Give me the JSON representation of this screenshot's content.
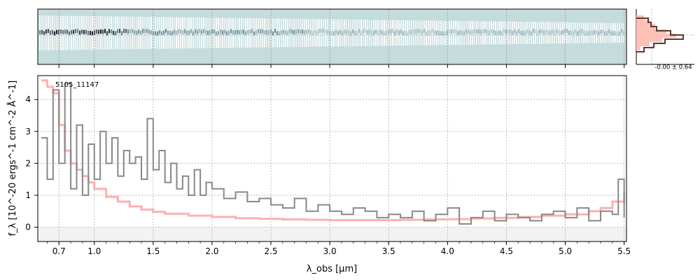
{
  "chart_data": {
    "type": "line",
    "object_label": "5105_11147",
    "xlabel": "λ_obs [µm]",
    "ylabel": "f_λ [10^-20 ergs^-1 cm^-2 Å^-1]",
    "xlim": [
      0.52,
      5.52
    ],
    "ylim": [
      -0.45,
      4.75
    ],
    "xtick_labels": [
      "0.7",
      "1.0",
      "1.5",
      "2.0",
      "2.5",
      "3.0",
      "3.5",
      "4.0",
      "4.5",
      "5.0",
      "5.5"
    ],
    "ytick_labels": [
      "0",
      "1",
      "2",
      "3",
      "4"
    ],
    "grid": true,
    "series": [
      {
        "color": "#888888",
        "x": [
          0.55,
          0.6,
          0.65,
          0.7,
          0.75,
          0.8,
          0.85,
          0.9,
          0.95,
          1.0,
          1.05,
          1.1,
          1.15,
          1.2,
          1.25,
          1.3,
          1.35,
          1.4,
          1.45,
          1.5,
          1.55,
          1.6,
          1.65,
          1.7,
          1.75,
          1.8,
          1.85,
          1.9,
          1.95,
          2.0,
          2.1,
          2.2,
          2.3,
          2.4,
          2.5,
          2.6,
          2.7,
          2.8,
          2.9,
          3.0,
          3.1,
          3.2,
          3.3,
          3.4,
          3.5,
          3.6,
          3.7,
          3.8,
          3.9,
          4.0,
          4.1,
          4.2,
          4.3,
          4.4,
          4.5,
          4.6,
          4.7,
          4.8,
          4.9,
          5.0,
          5.1,
          5.2,
          5.3,
          5.4,
          5.45,
          5.5
        ],
        "y": [
          2.8,
          1.5,
          4.3,
          2.0,
          4.5,
          1.2,
          3.2,
          1.0,
          2.6,
          1.5,
          3.0,
          2.0,
          2.8,
          1.6,
          2.4,
          2.0,
          2.2,
          1.5,
          3.4,
          1.8,
          2.4,
          1.4,
          2.0,
          1.2,
          1.6,
          1.0,
          1.8,
          1.0,
          1.4,
          1.2,
          0.9,
          1.1,
          0.8,
          0.9,
          0.7,
          0.6,
          0.9,
          0.5,
          0.7,
          0.5,
          0.4,
          0.6,
          0.5,
          0.3,
          0.4,
          0.3,
          0.5,
          0.2,
          0.4,
          0.6,
          0.1,
          0.3,
          0.5,
          0.2,
          0.4,
          0.3,
          0.2,
          0.4,
          0.5,
          0.3,
          0.6,
          0.2,
          0.5,
          0.4,
          1.5,
          0.3
        ]
      },
      {
        "color": "#ffb0b0",
        "x": [
          0.55,
          0.6,
          0.65,
          0.7,
          0.75,
          0.8,
          0.85,
          0.9,
          0.95,
          1.0,
          1.1,
          1.2,
          1.3,
          1.4,
          1.5,
          1.6,
          1.8,
          2.0,
          2.2,
          2.4,
          2.6,
          2.8,
          3.0,
          3.2,
          3.4,
          3.6,
          3.8,
          4.0,
          4.2,
          4.4,
          4.6,
          4.8,
          5.0,
          5.2,
          5.3,
          5.4,
          5.5
        ],
        "y": [
          4.6,
          4.4,
          4.2,
          3.2,
          2.4,
          2.0,
          1.8,
          1.6,
          1.4,
          1.2,
          0.95,
          0.8,
          0.65,
          0.55,
          0.48,
          0.42,
          0.36,
          0.32,
          0.28,
          0.26,
          0.24,
          0.23,
          0.22,
          0.22,
          0.22,
          0.23,
          0.24,
          0.25,
          0.27,
          0.29,
          0.32,
          0.36,
          0.4,
          0.5,
          0.6,
          0.8,
          1.1
        ]
      }
    ],
    "inset": {
      "label": "-0.00 ± 0.64"
    }
  }
}
